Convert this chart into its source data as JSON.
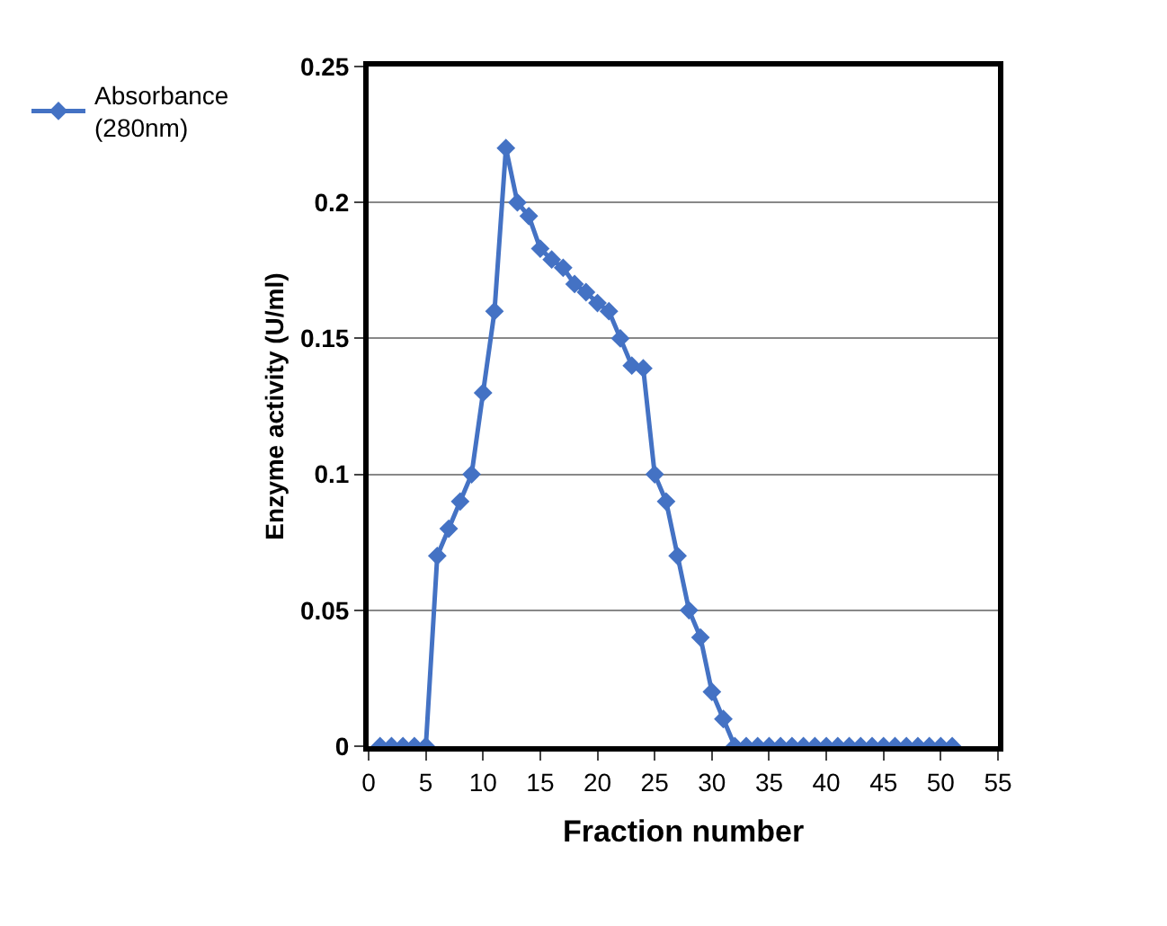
{
  "chart_data": {
    "type": "line",
    "xlabel": "Fraction number",
    "ylabel": "Enzyme activity (U/ml)",
    "x": [
      1,
      2,
      3,
      4,
      5,
      6,
      7,
      8,
      9,
      10,
      11,
      12,
      13,
      14,
      15,
      16,
      17,
      18,
      19,
      20,
      21,
      22,
      23,
      24,
      25,
      26,
      27,
      28,
      29,
      30,
      31,
      32,
      33,
      34,
      35,
      36,
      37,
      38,
      39,
      40,
      41,
      42,
      43,
      44,
      45,
      46,
      47,
      48,
      49,
      50,
      51
    ],
    "series": [
      {
        "name": "Absorbance (280nm)",
        "color": "#4472c4",
        "values": [
          0,
          0,
          0,
          0,
          0,
          0.07,
          0.08,
          0.09,
          0.1,
          0.13,
          0.16,
          0.22,
          0.2,
          0.195,
          0.183,
          0.179,
          0.176,
          0.17,
          0.167,
          0.163,
          0.16,
          0.15,
          0.14,
          0.139,
          0.1,
          0.09,
          0.07,
          0.05,
          0.04,
          0.02,
          0.01,
          0,
          0,
          0,
          0,
          0,
          0,
          0,
          0,
          0,
          0,
          0,
          0,
          0,
          0,
          0,
          0,
          0,
          0,
          0,
          0
        ]
      }
    ],
    "xlim": [
      0,
      55
    ],
    "xticks": [
      0,
      5,
      10,
      15,
      20,
      25,
      30,
      35,
      40,
      45,
      50,
      55
    ],
    "ylim": [
      0,
      0.25
    ],
    "yticks": [
      0,
      0.05,
      0.1,
      0.15,
      0.2,
      0.25
    ],
    "grid": "y",
    "legend": "top left",
    "marker": "diamond",
    "line_style": "solid"
  }
}
